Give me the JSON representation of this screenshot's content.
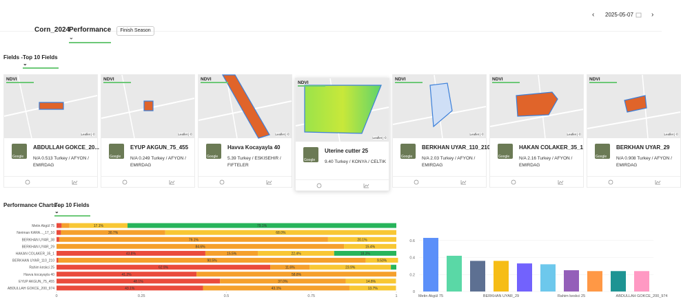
{
  "header": {
    "title": "Corn_2024",
    "view": "Performance",
    "button": "Finish Season",
    "date": "2025-05-07"
  },
  "fields_section": {
    "label": "Fields -",
    "filter": "Top 10 Fields",
    "ndvi_label": "NDVI",
    "map_attribution": "Leaflet | ©",
    "thumbnail_brand": "Google",
    "cards": [
      {
        "name": "ABDULLAH GOKCE_20...",
        "details": "N/A 0.513 Turkey / AFYON / EMIRDAG"
      },
      {
        "name": "EYUP AKGUN_75_455",
        "details": "N/A 0.249 Turkey / AFYON / EMIRDAG"
      },
      {
        "name": "Havva Kocayayla 40",
        "details": "5.39 Turkey / ESKISEHIR / FIFTELER"
      },
      {
        "name": "Uterine cutter 25",
        "details": "9.40 Turkey / KONYA / CELTIK"
      },
      {
        "name": "BERKHAN UYAR_110_210",
        "details": "N/A 2.03 Turkey / AFYON / EMIRDAG"
      },
      {
        "name": "HAKAN COLAKER_35_1",
        "details": "N/A 2.16 Turkey / AFYON / EMIRDAG"
      },
      {
        "name": "BERKHAN UYAR_29",
        "details": "N/A 0.908 Turkey / AFYON / EMIRDAG"
      }
    ]
  },
  "charts_section": {
    "label": "Performance Charts -",
    "filter": "Top 10 Fields"
  },
  "chart_data": [
    {
      "type": "bar",
      "horizontal": true,
      "stacked": true,
      "grid": false,
      "categories": [
        "Metin Akgül 75",
        "Neriman KARA..._17_10",
        "BERKHAN UYAR_38",
        "BERKHAN UYAR_29",
        "HAKAN COLAKER_35_1",
        "BERKHAN UYAR_110_210",
        "Rahim keskci 25",
        "Havva kocayayla 40",
        "EYUP AKGUN_75_455",
        "ABDULLAH GOKCE_200_974"
      ],
      "xlim": [
        0,
        1
      ],
      "xticks": [
        0,
        0.25,
        0.5,
        0.75,
        1
      ],
      "series": [
        {
          "color": "#ea4b3c",
          "values": [
            0.015,
            0.013,
            0.008,
            null,
            0.438,
            0.005,
            0.629,
            0.412,
            0.481,
            0.431
          ],
          "value_labels": [
            null,
            null,
            null,
            null,
            "43.8%",
            null,
            "62.9%",
            "41.2%",
            "48.1%",
            "43.1%"
          ]
        },
        {
          "color": "#f5a02c",
          "values": [
            0.023,
            0.307,
            0.791,
            0.846,
            0.155,
            0.905,
            0.116,
            0.588,
            0.37,
            0.431
          ],
          "value_labels": [
            null,
            "30.7%",
            "79.1%",
            "84.6%",
            "15.5%",
            "90.5%",
            "11.6%",
            "58.8%",
            "37.0%",
            "43.1%"
          ]
        },
        {
          "color": "#f8c734",
          "values": [
            0.171,
            0.68,
            0.201,
            0.154,
            0.224,
            0.095,
            0.239,
            null,
            0.148,
            0.137
          ],
          "value_labels": [
            "17.1%",
            "68.0%",
            "20.1%",
            "15.4%",
            "22.4%",
            "9.50%",
            "23.9%",
            null,
            "14.8%",
            "13.7%"
          ]
        },
        {
          "color": "#27b45a",
          "values": [
            0.791,
            null,
            null,
            null,
            0.183,
            null,
            0.016,
            null,
            null,
            null
          ],
          "value_labels": [
            "79.1%",
            null,
            null,
            null,
            "18.3%",
            null,
            null,
            null,
            null,
            null
          ]
        }
      ]
    },
    {
      "type": "bar",
      "horizontal": false,
      "grid": true,
      "categories": [
        "Metin Akgül 75",
        null,
        null,
        "BERKHAN UYAR_29",
        null,
        null,
        "Rahim keskci 25",
        null,
        null,
        "ABDULLAH GOKCE_200_974"
      ],
      "values": [
        0.63,
        0.42,
        0.36,
        0.36,
        0.33,
        0.32,
        0.25,
        0.24,
        0.24,
        0.24
      ],
      "colors": [
        "#5b8ff9",
        "#5ad8a6",
        "#5d7092",
        "#f6bd16",
        "#7262fd",
        "#6dc8ec",
        "#945fb9",
        "#ff9845",
        "#1e9493",
        "#ff99c3"
      ],
      "ylim": [
        0,
        0.8
      ],
      "yticks": [
        0,
        0.2,
        0.4,
        0.6
      ]
    }
  ]
}
